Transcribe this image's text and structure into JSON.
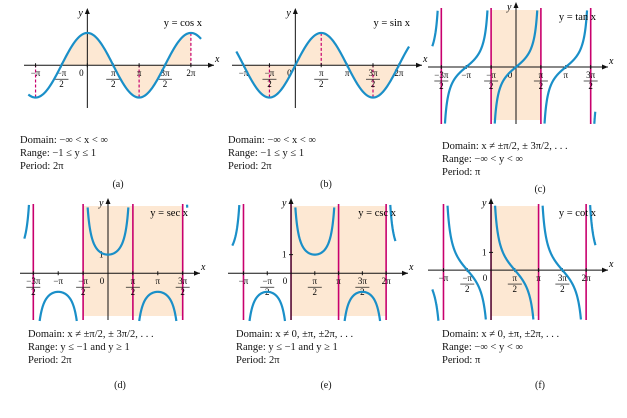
{
  "colors": {
    "curve": "#1a8fc8",
    "shade": "#fde8d3",
    "asymptote": "#c8006e",
    "dash": "#c8006e",
    "axis": "#111111"
  },
  "chart_data": [
    {
      "id": "a",
      "type": "line",
      "func": "cos",
      "title": "y = cos x",
      "ylabel": "y",
      "xlabel": "x",
      "xlim": [
        -3.6,
        7.2
      ],
      "ylim": [
        -1.2,
        1.4
      ],
      "ticks": [
        {
          "x": -3.14159,
          "label": "−π"
        },
        {
          "x": -1.5708,
          "label": "−π/2"
        },
        {
          "x": 0,
          "label": "0"
        },
        {
          "x": 1.5708,
          "label": "π/2"
        },
        {
          "x": 3.14159,
          "label": "π"
        },
        {
          "x": 4.71239,
          "label": "3π/2"
        },
        {
          "x": 6.28319,
          "label": "2π"
        }
      ],
      "dashes": [
        -3.14159,
        3.14159,
        6.28319
      ],
      "domain": "Domain: −∞ < x < ∞",
      "range": "Range:  −1 ≤ y ≤ 1",
      "period": "Period:   2π",
      "caption": "(a)"
    },
    {
      "id": "b",
      "type": "line",
      "func": "sin",
      "title": "y = sin x",
      "ylabel": "y",
      "xlabel": "x",
      "xlim": [
        -3.6,
        7.2
      ],
      "ylim": [
        -1.2,
        1.4
      ],
      "ticks": [
        {
          "x": -3.14159,
          "label": "−π"
        },
        {
          "x": -1.5708,
          "label": "−π/2"
        },
        {
          "x": 0,
          "label": "0"
        },
        {
          "x": 1.5708,
          "label": "π/2"
        },
        {
          "x": 3.14159,
          "label": "π"
        },
        {
          "x": 4.71239,
          "label": "3π/2"
        },
        {
          "x": 6.28319,
          "label": "2π"
        }
      ],
      "dashes": [
        -1.5708,
        1.5708,
        4.71239
      ],
      "domain": "Domain: −∞ < x < ∞",
      "range": "Range:  −1 ≤ y ≤ 1",
      "period": "Period:   2π",
      "caption": "(b)"
    },
    {
      "id": "c",
      "type": "line",
      "func": "tan",
      "title": "y = tan x",
      "ylabel": "y",
      "xlabel": "x",
      "xlim": [
        -5.3,
        5.3
      ],
      "ylim": [
        -4,
        4
      ],
      "ticks": [
        {
          "x": -4.71239,
          "label": "−3π/2"
        },
        {
          "x": -3.14159,
          "label": "−π"
        },
        {
          "x": -1.5708,
          "label": "−π/2"
        },
        {
          "x": 0,
          "label": "0"
        },
        {
          "x": 1.5708,
          "label": "π/2"
        },
        {
          "x": 3.14159,
          "label": "π"
        },
        {
          "x": 4.71239,
          "label": "3π/2"
        }
      ],
      "asymptotes": [
        -4.71239,
        -1.5708,
        1.5708,
        4.71239
      ],
      "domain": "Domain: x ≠ ±π/2, ± 3π/2, . . .",
      "range": "Range:    −∞ < y < ∞",
      "period": "Period:    π",
      "caption": "(c)"
    },
    {
      "id": "d",
      "type": "line",
      "func": "sec",
      "title": "y = sec x",
      "ylabel": "y",
      "xlabel": "x",
      "yticklabel": "1",
      "xlim": [
        -5.3,
        5.3
      ],
      "ylim": [
        -2.3,
        3.4
      ],
      "ticks": [
        {
          "x": -4.71239,
          "label": "−3π/2"
        },
        {
          "x": -3.14159,
          "label": "−π"
        },
        {
          "x": -1.5708,
          "label": "−π/2"
        },
        {
          "x": 0,
          "label": "0"
        },
        {
          "x": 1.5708,
          "label": "π/2"
        },
        {
          "x": 3.14159,
          "label": "π"
        },
        {
          "x": 4.71239,
          "label": "3π/2"
        }
      ],
      "asymptotes": [
        -4.71239,
        -1.5708,
        1.5708,
        4.71239
      ],
      "domain": "Domain: x ≠ ±π/2, ± 3π/2, . . .",
      "range": "Range:   y ≤ −1 and y ≥ 1",
      "period": "Period:    2π",
      "caption": "(d)"
    },
    {
      "id": "e",
      "type": "line",
      "func": "csc",
      "title": "y = csc x",
      "ylabel": "y",
      "xlabel": "x",
      "yticklabel": "1",
      "xlim": [
        -3.9,
        7.2
      ],
      "ylim": [
        -2.3,
        3.4
      ],
      "ticks": [
        {
          "x": -3.14159,
          "label": "−π"
        },
        {
          "x": -1.5708,
          "label": "−π/2"
        },
        {
          "x": 0,
          "label": "0"
        },
        {
          "x": 1.5708,
          "label": "π/2"
        },
        {
          "x": 3.14159,
          "label": "π"
        },
        {
          "x": 4.71239,
          "label": "3π/2"
        },
        {
          "x": 6.28319,
          "label": "2π"
        }
      ],
      "asymptotes": [
        -3.14159,
        0,
        3.14159,
        6.28319
      ],
      "domain": "Domain: x ≠ 0, ±π, ±2π, . . .",
      "range": "Range:   y ≤ −1 and y ≥ 1",
      "period": "Period:    2π",
      "caption": "(e)"
    },
    {
      "id": "f",
      "type": "line",
      "func": "cot",
      "title": "y = cot x",
      "ylabel": "y",
      "xlabel": "x",
      "yticklabel": "1",
      "xlim": [
        -3.9,
        7.2
      ],
      "ylim": [
        -2.6,
        3.4
      ],
      "ticks": [
        {
          "x": -3.14159,
          "label": "−π"
        },
        {
          "x": -1.5708,
          "label": "−π/2"
        },
        {
          "x": 0,
          "label": "0"
        },
        {
          "x": 1.5708,
          "label": "π/2"
        },
        {
          "x": 3.14159,
          "label": "π"
        },
        {
          "x": 4.71239,
          "label": "3π/2"
        },
        {
          "x": 6.28319,
          "label": "2π"
        }
      ],
      "asymptotes": [
        -3.14159,
        0,
        3.14159,
        6.28319
      ],
      "domain": "Domain: x ≠ 0, ±π, ±2π, . . .",
      "range": "Range:    −∞ < y < ∞",
      "period": "Period:    π",
      "caption": "(f)"
    }
  ]
}
